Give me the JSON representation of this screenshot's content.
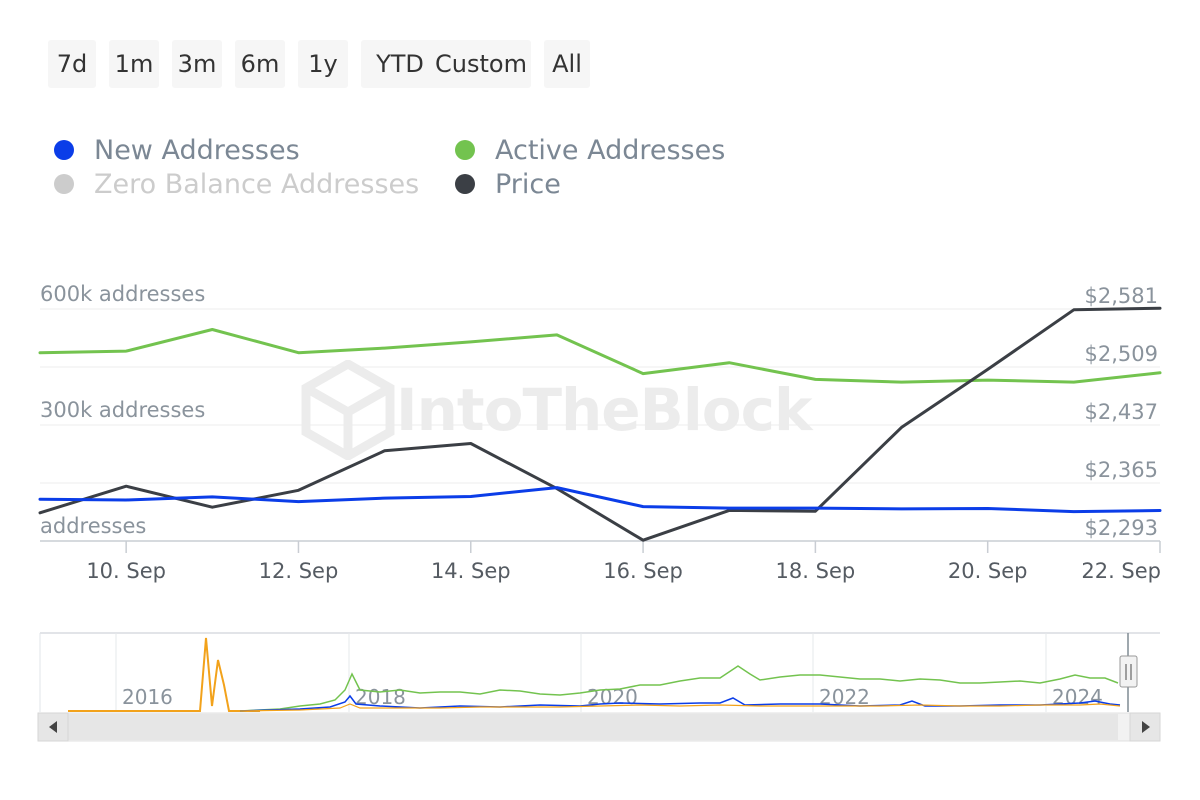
{
  "range_buttons": [
    "7d",
    "1m",
    "3m",
    "6m",
    "1y",
    "YTD",
    "Custom",
    "All"
  ],
  "legend": [
    {
      "label": "New Addresses",
      "color": "#0b3de8",
      "active": true
    },
    {
      "label": "Active Addresses",
      "color": "#73c34f",
      "active": true
    },
    {
      "label": "Zero Balance Addresses",
      "color": "#cccccc",
      "active": false
    },
    {
      "label": "Price",
      "color": "#3b3f45",
      "active": true
    }
  ],
  "watermark": "IntoTheBlock",
  "chart_data": {
    "type": "line",
    "x": [
      "9 Sep",
      "10 Sep",
      "11 Sep",
      "12 Sep",
      "13 Sep",
      "14 Sep",
      "15 Sep",
      "16 Sep",
      "17 Sep",
      "18 Sep",
      "19 Sep",
      "20 Sep",
      "21 Sep",
      "22 Sep"
    ],
    "x_ticks": [
      "10. Sep",
      "12. Sep",
      "14. Sep",
      "16. Sep",
      "18. Sep",
      "20. Sep",
      "22. Sep"
    ],
    "y_left": {
      "ticks": [
        "600k addresses",
        "300k addresses",
        "addresses"
      ],
      "range": [
        0,
        600000
      ]
    },
    "y_right": {
      "ticks": [
        "$2,581",
        "$2,509",
        "$2,437",
        "$2,365",
        "$2,293"
      ],
      "range": [
        2293,
        2581
      ]
    },
    "series": [
      {
        "name": "Active Addresses",
        "axis": "left",
        "color": "#73c34f",
        "values": [
          487000,
          491000,
          547000,
          487000,
          499000,
          515000,
          533000,
          433000,
          461000,
          418000,
          411000,
          416000,
          411000,
          435000
        ]
      },
      {
        "name": "Price",
        "axis": "right",
        "color": "#3b3f45",
        "values": [
          2328,
          2361,
          2335,
          2356,
          2405,
          2414,
          2358,
          2294,
          2331,
          2330,
          2434,
          2506,
          2580,
          2582
        ]
      },
      {
        "name": "New Addresses",
        "axis": "left",
        "color": "#0b3de8",
        "values": [
          108000,
          106000,
          114000,
          102000,
          111000,
          115000,
          138000,
          89000,
          85000,
          85000,
          83000,
          84000,
          76000,
          79000
        ]
      }
    ],
    "navigator": {
      "x_ticks": [
        "2016",
        "2018",
        "2020",
        "2022",
        "2024"
      ]
    }
  }
}
